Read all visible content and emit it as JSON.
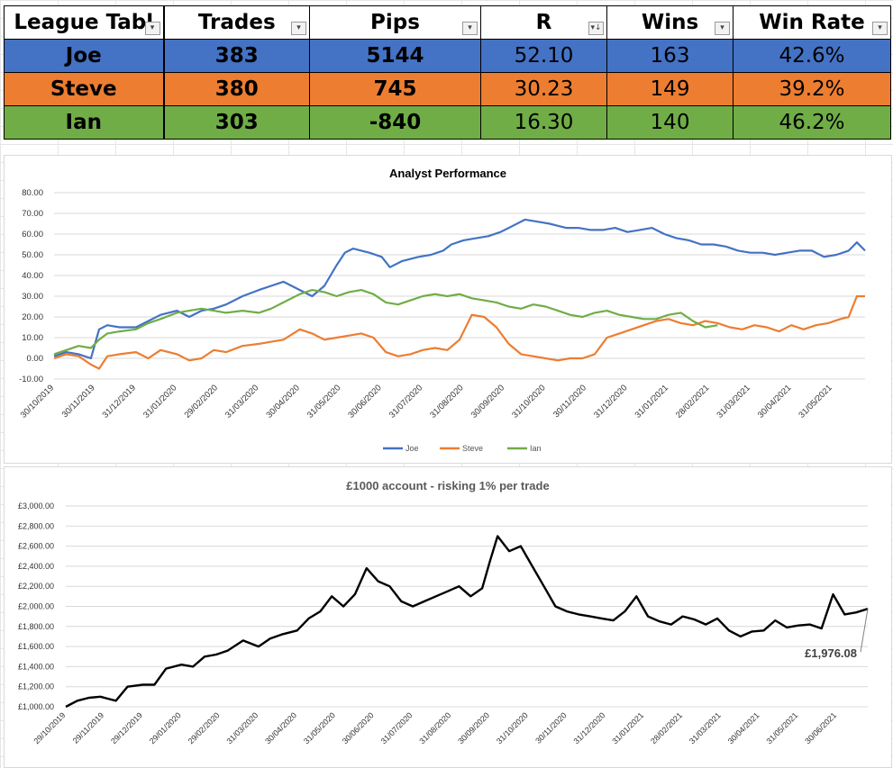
{
  "table": {
    "headers": [
      "League Tabl",
      "Trades",
      "Pips",
      "R",
      "Wins",
      "Win Rate"
    ],
    "filter_icons": [
      "dropdown-filter-icon",
      "dropdown-filter-icon",
      "dropdown-filter-icon",
      "sort-filter-icon",
      "dropdown-filter-icon",
      "dropdown-filter-icon"
    ],
    "rows": [
      {
        "name": "Joe",
        "trades": "383",
        "pips": "5144",
        "r": "52.10",
        "wins": "163",
        "win_rate": "42.6%",
        "color": "#4472c4"
      },
      {
        "name": "Steve",
        "trades": "380",
        "pips": "745",
        "r": "30.23",
        "wins": "149",
        "win_rate": "39.2%",
        "color": "#ed7d31"
      },
      {
        "name": "Ian",
        "trades": "303",
        "pips": "-840",
        "r": "16.30",
        "wins": "140",
        "win_rate": "46.2%",
        "color": "#70ad47"
      }
    ]
  },
  "chart_data": [
    {
      "type": "line",
      "title": "Analyst Performance",
      "ylim": [
        -10,
        80
      ],
      "yticks": [
        "80.00",
        "70.00",
        "60.00",
        "50.00",
        "40.00",
        "30.00",
        "20.00",
        "10.00",
        "0.00",
        "-10.00"
      ],
      "ytick_values": [
        80,
        70,
        60,
        50,
        40,
        30,
        20,
        10,
        0,
        -10
      ],
      "xticks": [
        "30/10/2019",
        "30/11/2019",
        "31/12/2019",
        "31/01/2020",
        "29/02/2020",
        "31/03/2020",
        "30/04/2020",
        "31/05/2020",
        "30/06/2020",
        "31/07/2020",
        "31/08/2020",
        "30/09/2020",
        "31/10/2020",
        "30/11/2020",
        "31/12/2020",
        "31/01/2021",
        "28/02/2021",
        "31/03/2021",
        "30/04/2021",
        "31/05/2021"
      ],
      "x_range": [
        0,
        19.8
      ],
      "grid": true,
      "legend": "bottom",
      "series": [
        {
          "name": "Joe",
          "color": "#4472c4",
          "x": [
            0,
            0.3,
            0.6,
            0.9,
            1.1,
            1.3,
            1.6,
            2.0,
            2.3,
            2.6,
            3.0,
            3.3,
            3.6,
            3.9,
            4.2,
            4.6,
            5.0,
            5.3,
            5.6,
            6.0,
            6.3,
            6.6,
            6.9,
            7.1,
            7.3,
            7.5,
            7.7,
            8.0,
            8.2,
            8.5,
            8.9,
            9.2,
            9.5,
            9.7,
            10.0,
            10.3,
            10.6,
            10.9,
            11.2,
            11.5,
            11.8,
            12.1,
            12.3,
            12.5,
            12.8,
            13.1,
            13.4,
            13.7,
            14.0,
            14.3,
            14.6,
            14.9,
            15.2,
            15.5,
            15.8,
            16.1,
            16.4,
            16.7,
            17.0,
            17.3,
            17.6,
            17.9,
            18.2,
            18.5,
            18.8,
            19.1,
            19.4,
            19.6,
            19.8
          ],
          "y": [
            1,
            3,
            2,
            0,
            14,
            16,
            15,
            15,
            18,
            21,
            23,
            20,
            23,
            24,
            26,
            30,
            33,
            35,
            37,
            33,
            30,
            35,
            45,
            51,
            53,
            52,
            51,
            49,
            44,
            47,
            49,
            50,
            52,
            55,
            57,
            58,
            59,
            61,
            64,
            67,
            66,
            65,
            64,
            63,
            63,
            62,
            62,
            63,
            61,
            62,
            63,
            60,
            58,
            57,
            55,
            55,
            54,
            52,
            51,
            51,
            50,
            51,
            52,
            52,
            49,
            50,
            52,
            56,
            52
          ]
        },
        {
          "name": "Steve",
          "color": "#ed7d31",
          "x": [
            0,
            0.3,
            0.6,
            0.9,
            1.1,
            1.3,
            1.6,
            2.0,
            2.3,
            2.6,
            3.0,
            3.3,
            3.6,
            3.9,
            4.2,
            4.6,
            5.0,
            5.3,
            5.6,
            6.0,
            6.3,
            6.6,
            6.9,
            7.2,
            7.5,
            7.8,
            8.1,
            8.4,
            8.7,
            9.0,
            9.3,
            9.6,
            9.9,
            10.2,
            10.5,
            10.8,
            11.1,
            11.4,
            11.7,
            12.0,
            12.3,
            12.6,
            12.9,
            13.2,
            13.5,
            13.8,
            14.1,
            14.4,
            14.7,
            15.0,
            15.3,
            15.6,
            15.9,
            16.2,
            16.5,
            16.8,
            17.1,
            17.4,
            17.7,
            18.0,
            18.3,
            18.6,
            18.9,
            19.2,
            19.4,
            19.6,
            19.8
          ],
          "y": [
            0,
            2,
            1,
            -3,
            -5,
            1,
            2,
            3,
            0,
            4,
            2,
            -1,
            0,
            4,
            3,
            6,
            7,
            8,
            9,
            14,
            12,
            9,
            10,
            11,
            12,
            10,
            3,
            1,
            2,
            4,
            5,
            4,
            9,
            21,
            20,
            15,
            7,
            2,
            1,
            0,
            -1,
            0,
            0,
            2,
            10,
            12,
            14,
            16,
            18,
            19,
            17,
            16,
            18,
            17,
            15,
            14,
            16,
            15,
            13,
            16,
            14,
            16,
            17,
            19,
            20,
            30,
            30
          ]
        },
        {
          "name": "Ian",
          "color": "#70ad47",
          "x": [
            0,
            0.3,
            0.6,
            0.9,
            1.1,
            1.3,
            1.6,
            2.0,
            2.3,
            2.6,
            3.0,
            3.3,
            3.6,
            3.9,
            4.2,
            4.6,
            5.0,
            5.3,
            5.6,
            6.0,
            6.3,
            6.6,
            6.9,
            7.2,
            7.5,
            7.8,
            8.1,
            8.4,
            8.7,
            9.0,
            9.3,
            9.6,
            9.9,
            10.2,
            10.5,
            10.8,
            11.1,
            11.4,
            11.7,
            12.0,
            12.3,
            12.6,
            12.9,
            13.2,
            13.5,
            13.8,
            14.1,
            14.4,
            14.7,
            15.0,
            15.3,
            15.6,
            15.9,
            16.2
          ],
          "y": [
            2,
            4,
            6,
            5,
            9,
            12,
            13,
            14,
            17,
            19,
            22,
            23,
            24,
            23,
            22,
            23,
            22,
            24,
            27,
            31,
            33,
            32,
            30,
            32,
            33,
            31,
            27,
            26,
            28,
            30,
            31,
            30,
            31,
            29,
            28,
            27,
            25,
            24,
            26,
            25,
            23,
            21,
            20,
            22,
            23,
            21,
            20,
            19,
            19,
            21,
            22,
            18,
            15,
            16
          ]
        }
      ]
    },
    {
      "type": "line",
      "title": "£1000 account - risking 1% per trade",
      "ylim": [
        1000,
        3000
      ],
      "yticks": [
        "£3,000.00",
        "£2,800.00",
        "£2,600.00",
        "£2,400.00",
        "£2,200.00",
        "£2,000.00",
        "£1,800.00",
        "£1,600.00",
        "£1,400.00",
        "£1,200.00",
        "£1,000.00"
      ],
      "ytick_values": [
        3000,
        2800,
        2600,
        2400,
        2200,
        2000,
        1800,
        1600,
        1400,
        1200,
        1000
      ],
      "xticks": [
        "29/10/2019",
        "29/11/2019",
        "29/12/2019",
        "29/01/2020",
        "29/02/2020",
        "31/03/2020",
        "30/04/2020",
        "31/05/2020",
        "30/06/2020",
        "31/07/2020",
        "31/08/2020",
        "30/09/2020",
        "31/10/2020",
        "30/11/2020",
        "31/12/2020",
        "31/01/2021",
        "28/02/2021",
        "31/03/2021",
        "30/04/2021",
        "31/05/2021",
        "30/06/2021"
      ],
      "x_range": [
        0,
        20.8
      ],
      "grid": true,
      "legend": "none",
      "annotation": "£1,976.08",
      "annotation_point": [
        20.8,
        1976.08
      ],
      "series": [
        {
          "name": "",
          "color": "#000000",
          "x": [
            0,
            0.3,
            0.6,
            0.9,
            1.1,
            1.3,
            1.6,
            2.0,
            2.3,
            2.6,
            3.0,
            3.3,
            3.6,
            3.9,
            4.2,
            4.6,
            5.0,
            5.3,
            5.6,
            6.0,
            6.3,
            6.6,
            6.9,
            7.2,
            7.5,
            7.8,
            8.1,
            8.4,
            8.7,
            9.0,
            9.3,
            9.6,
            9.9,
            10.2,
            10.5,
            10.8,
            11.0,
            11.2,
            11.5,
            11.8,
            12.1,
            12.4,
            12.7,
            13.0,
            13.3,
            13.6,
            13.9,
            14.2,
            14.5,
            14.8,
            15.1,
            15.4,
            15.7,
            16.0,
            16.3,
            16.6,
            16.9,
            17.2,
            17.5,
            17.8,
            18.1,
            18.4,
            18.7,
            19.0,
            19.3,
            19.6,
            19.9,
            20.2,
            20.5,
            20.8
          ],
          "y": [
            1000,
            1060,
            1090,
            1100,
            1080,
            1060,
            1200,
            1220,
            1220,
            1380,
            1420,
            1400,
            1500,
            1520,
            1560,
            1660,
            1600,
            1680,
            1720,
            1760,
            1880,
            1950,
            2100,
            2000,
            2120,
            2380,
            2250,
            2200,
            2050,
            2000,
            2050,
            2100,
            2150,
            2200,
            2100,
            2180,
            2450,
            2700,
            2550,
            2600,
            2400,
            2200,
            2000,
            1950,
            1920,
            1900,
            1880,
            1860,
            1950,
            2100,
            1900,
            1850,
            1820,
            1900,
            1870,
            1820,
            1880,
            1760,
            1700,
            1750,
            1760,
            1860,
            1790,
            1810,
            1820,
            1780,
            2120,
            1920,
            1940,
            1976
          ]
        }
      ]
    }
  ]
}
